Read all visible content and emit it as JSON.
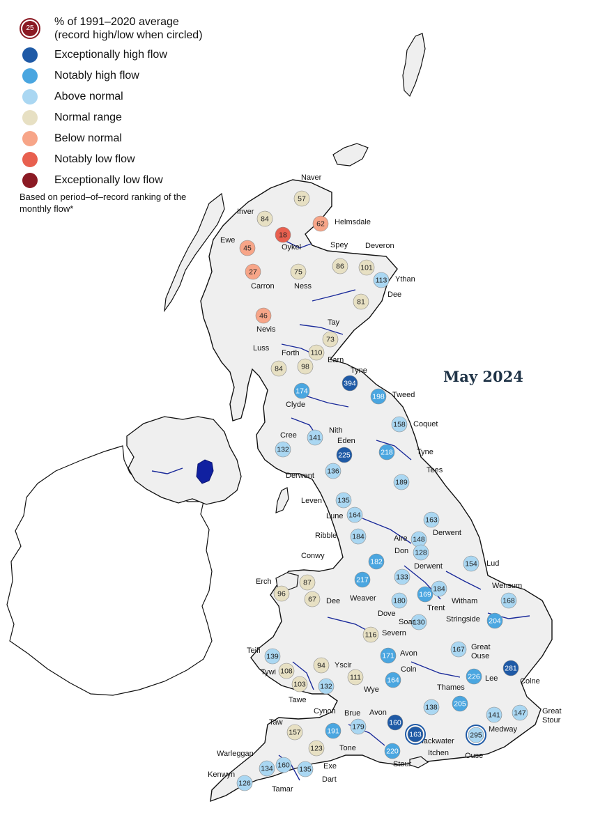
{
  "title": "May 2024",
  "legend": {
    "record_sample_value": "25",
    "entries": [
      {
        "label": "% of 1991–2020 average\n(record high/low when circled)",
        "color": "#8b1a24"
      },
      {
        "label": "Exceptionally high flow",
        "color": "#1f5aa6"
      },
      {
        "label": "Notably high flow",
        "color": "#4aa6e0"
      },
      {
        "label": "Above normal",
        "color": "#aad7f2"
      },
      {
        "label": "Normal range",
        "color": "#e7e0c3"
      },
      {
        "label": "Below normal",
        "color": "#f7a588"
      },
      {
        "label": "Notably low flow",
        "color": "#e8604f"
      },
      {
        "label": "Exceptionally low flow",
        "color": "#8b1a24"
      }
    ],
    "note": "Based on period–of–record ranking of the monthly flow*"
  },
  "class_colors": {
    "exceptionally_high": "#1f5aa6",
    "notably_high": "#4aa6e0",
    "above_normal": "#aad7f2",
    "normal": "#e7e0c3",
    "below_normal": "#f7a588",
    "notably_low": "#e8604f",
    "exceptionally_low": "#8b1a24"
  },
  "sites": [
    {
      "river": "Naver",
      "value": 57,
      "class": "normal"
    },
    {
      "river": "Inver",
      "value": 84,
      "class": "normal"
    },
    {
      "river": "Helmsdale",
      "value": 62,
      "class": "below_normal"
    },
    {
      "river": "Oykel",
      "value": 18,
      "class": "notably_low"
    },
    {
      "river": "Ewe",
      "value": 45,
      "class": "below_normal"
    },
    {
      "river": "Spey",
      "value": 86,
      "class": "normal"
    },
    {
      "river": "Deveron",
      "value": 101,
      "class": "normal"
    },
    {
      "river": "Ness",
      "value": 75,
      "class": "normal"
    },
    {
      "river": "Ythan",
      "value": 113,
      "class": "above_normal"
    },
    {
      "river": "Carron",
      "value": 27,
      "class": "below_normal"
    },
    {
      "river": "Dee",
      "value": 81,
      "class": "normal"
    },
    {
      "river": "Nevis",
      "value": 46,
      "class": "below_normal"
    },
    {
      "river": "Tay",
      "value": 73,
      "class": "normal"
    },
    {
      "river": "Forth",
      "value": 110,
      "class": "normal"
    },
    {
      "river": "Earn",
      "value": 98,
      "class": "normal"
    },
    {
      "river": "Luss",
      "value": 84,
      "class": "normal"
    },
    {
      "river": "Tyne",
      "value": 394,
      "class": "exceptionally_high"
    },
    {
      "river": "Clyde",
      "value": 174,
      "class": "notably_high"
    },
    {
      "river": "Tweed",
      "value": 198,
      "class": "notably_high"
    },
    {
      "river": "Coquet",
      "value": 158,
      "class": "above_normal"
    },
    {
      "river": "Cree",
      "value": 132,
      "class": "above_normal"
    },
    {
      "river": "Nith",
      "value": 141,
      "class": "above_normal"
    },
    {
      "river": "Eden",
      "value": 225,
      "class": "exceptionally_high"
    },
    {
      "river": "Tyne",
      "value": 218,
      "class": "notably_high"
    },
    {
      "river": "Tees",
      "value": 189,
      "class": "above_normal"
    },
    {
      "river": "Derwent",
      "value": 136,
      "class": "above_normal"
    },
    {
      "river": "Leven",
      "value": 135,
      "class": "above_normal"
    },
    {
      "river": "Lune",
      "value": 164,
      "class": "above_normal"
    },
    {
      "river": "Ribble",
      "value": 184,
      "class": "above_normal"
    },
    {
      "river": "Derwent",
      "value": 163,
      "class": "above_normal"
    },
    {
      "river": "Aire",
      "value": 148,
      "class": "above_normal"
    },
    {
      "river": "Don",
      "value": 128,
      "class": "above_normal"
    },
    {
      "river": "Lud",
      "value": 154,
      "class": "above_normal"
    },
    {
      "river": "Conwy",
      "value": 87,
      "class": "normal"
    },
    {
      "river": "Erch",
      "value": 96,
      "class": "normal"
    },
    {
      "river": "Dee",
      "value": 67,
      "class": "normal"
    },
    {
      "river": "",
      "value": 182,
      "class": "notably_high"
    },
    {
      "river": "Weaver",
      "value": 217,
      "class": "notably_high"
    },
    {
      "river": "Derwent",
      "value": 133,
      "class": "above_normal"
    },
    {
      "river": "Trent",
      "value": 169,
      "class": "notably_high"
    },
    {
      "river": "Witham",
      "value": 184,
      "class": "above_normal"
    },
    {
      "river": "Dove",
      "value": 180,
      "class": "above_normal"
    },
    {
      "river": "Soar",
      "value": 130,
      "class": "above_normal"
    },
    {
      "river": "Wensum",
      "value": 168,
      "class": "above_normal"
    },
    {
      "river": "Stringside",
      "value": 204,
      "class": "notably_high"
    },
    {
      "river": "Severn",
      "value": 116,
      "class": "normal"
    },
    {
      "river": "Teifi",
      "value": 139,
      "class": "above_normal"
    },
    {
      "river": "Avon",
      "value": 171,
      "class": "notably_high"
    },
    {
      "river": "Great Ouse",
      "value": 167,
      "class": "above_normal"
    },
    {
      "river": "Colne",
      "value": 281,
      "class": "exceptionally_high"
    },
    {
      "river": "Tywi",
      "value": 108,
      "class": "normal"
    },
    {
      "river": "Yscir",
      "value": 94,
      "class": "normal"
    },
    {
      "river": "Wye",
      "value": 111,
      "class": "normal"
    },
    {
      "river": "Coln",
      "value": 164,
      "class": "notably_high"
    },
    {
      "river": "Lee",
      "value": 226,
      "class": "notably_high"
    },
    {
      "river": "Tawe",
      "value": 103,
      "class": "normal"
    },
    {
      "river": "Cynon",
      "value": 132,
      "class": "above_normal"
    },
    {
      "river": "Thames",
      "value": 205,
      "class": "notably_high"
    },
    {
      "river": "",
      "value": 138,
      "class": "above_normal"
    },
    {
      "river": "Great Stour",
      "value": 147,
      "class": "above_normal"
    },
    {
      "river": "Medway",
      "value": 141,
      "class": "above_normal"
    },
    {
      "river": "Taw",
      "value": 157,
      "class": "normal"
    },
    {
      "river": "Brue",
      "value": 191,
      "class": "notably_high"
    },
    {
      "river": "",
      "value": 179,
      "class": "above_normal"
    },
    {
      "river": "Avon",
      "value": 160,
      "class": "exceptionally_high"
    },
    {
      "river": "Blackwater",
      "value": null,
      "class": "label_only"
    },
    {
      "river": "Itchen",
      "value": 163,
      "class": "exceptionally_high",
      "record": true
    },
    {
      "river": "Ouse",
      "value": 295,
      "class": "above_normal",
      "record": true
    },
    {
      "river": "Tone",
      "value": 123,
      "class": "normal"
    },
    {
      "river": "Stour",
      "value": 220,
      "class": "notably_high"
    },
    {
      "river": "Warleggan",
      "value": 134,
      "class": "above_normal"
    },
    {
      "river": "",
      "value": 160,
      "class": "above_normal"
    },
    {
      "river": "Exe",
      "value": 135,
      "class": "above_normal"
    },
    {
      "river": "Dart",
      "value": null,
      "class": "label_only"
    },
    {
      "river": "Kenwyn",
      "value": 126,
      "class": "above_normal"
    },
    {
      "river": "Tamar",
      "value": null,
      "class": "label_only"
    }
  ]
}
